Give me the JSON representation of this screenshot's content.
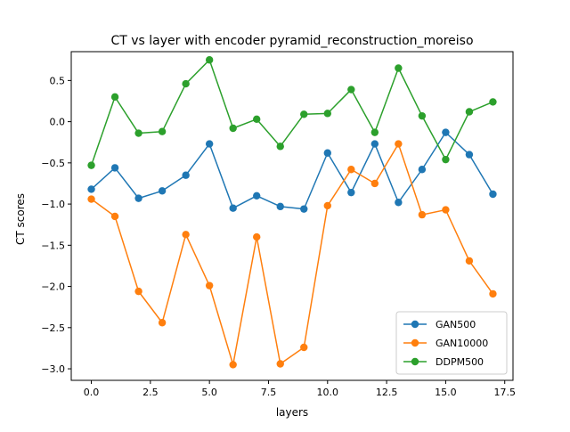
{
  "chart_data": {
    "type": "line",
    "title": "CT vs layer with encoder pyramid_reconstruction_moreiso",
    "xlabel": "layers",
    "ylabel": "CT scores",
    "xlim": [
      -0.85,
      17.85
    ],
    "ylim": [
      -3.14,
      0.85
    ],
    "xticks": [
      0.0,
      2.5,
      5.0,
      7.5,
      10.0,
      12.5,
      15.0,
      17.5
    ],
    "xtick_labels": [
      "0.0",
      "2.5",
      "5.0",
      "7.5",
      "10.0",
      "12.5",
      "15.0",
      "17.5"
    ],
    "yticks": [
      -3.0,
      -2.5,
      -2.0,
      -1.5,
      -1.0,
      -0.5,
      0.0,
      0.5
    ],
    "ytick_labels": [
      "−3.0",
      "−2.5",
      "−2.0",
      "−1.5",
      "−1.0",
      "−0.5",
      "0.0",
      "0.5"
    ],
    "grid": false,
    "legend_position": "lower-right",
    "x": [
      0,
      1,
      2,
      3,
      4,
      5,
      6,
      7,
      8,
      9,
      10,
      11,
      12,
      13,
      14,
      15,
      16,
      17
    ],
    "series": [
      {
        "name": "GAN500",
        "color": "#1f77b4",
        "values": [
          -0.82,
          -0.56,
          -0.93,
          -0.84,
          -0.65,
          -0.27,
          -1.05,
          -0.9,
          -1.03,
          -1.06,
          -0.38,
          -0.86,
          -0.27,
          -0.98,
          -0.58,
          -0.13,
          -0.4,
          -0.88
        ]
      },
      {
        "name": "GAN10000",
        "color": "#ff7f0e",
        "values": [
          -0.94,
          -1.15,
          -2.06,
          -2.44,
          -1.37,
          -1.99,
          -2.95,
          -1.4,
          -2.94,
          -2.74,
          -1.02,
          -0.58,
          -0.75,
          -0.27,
          -1.13,
          -1.07,
          -1.69,
          -2.09
        ]
      },
      {
        "name": "DDPM500",
        "color": "#2ca02c",
        "values": [
          -0.53,
          0.3,
          -0.14,
          -0.12,
          0.46,
          0.75,
          -0.08,
          0.03,
          -0.3,
          0.09,
          0.1,
          0.39,
          -0.13,
          0.65,
          0.07,
          -0.46,
          0.12,
          0.24
        ]
      }
    ]
  }
}
